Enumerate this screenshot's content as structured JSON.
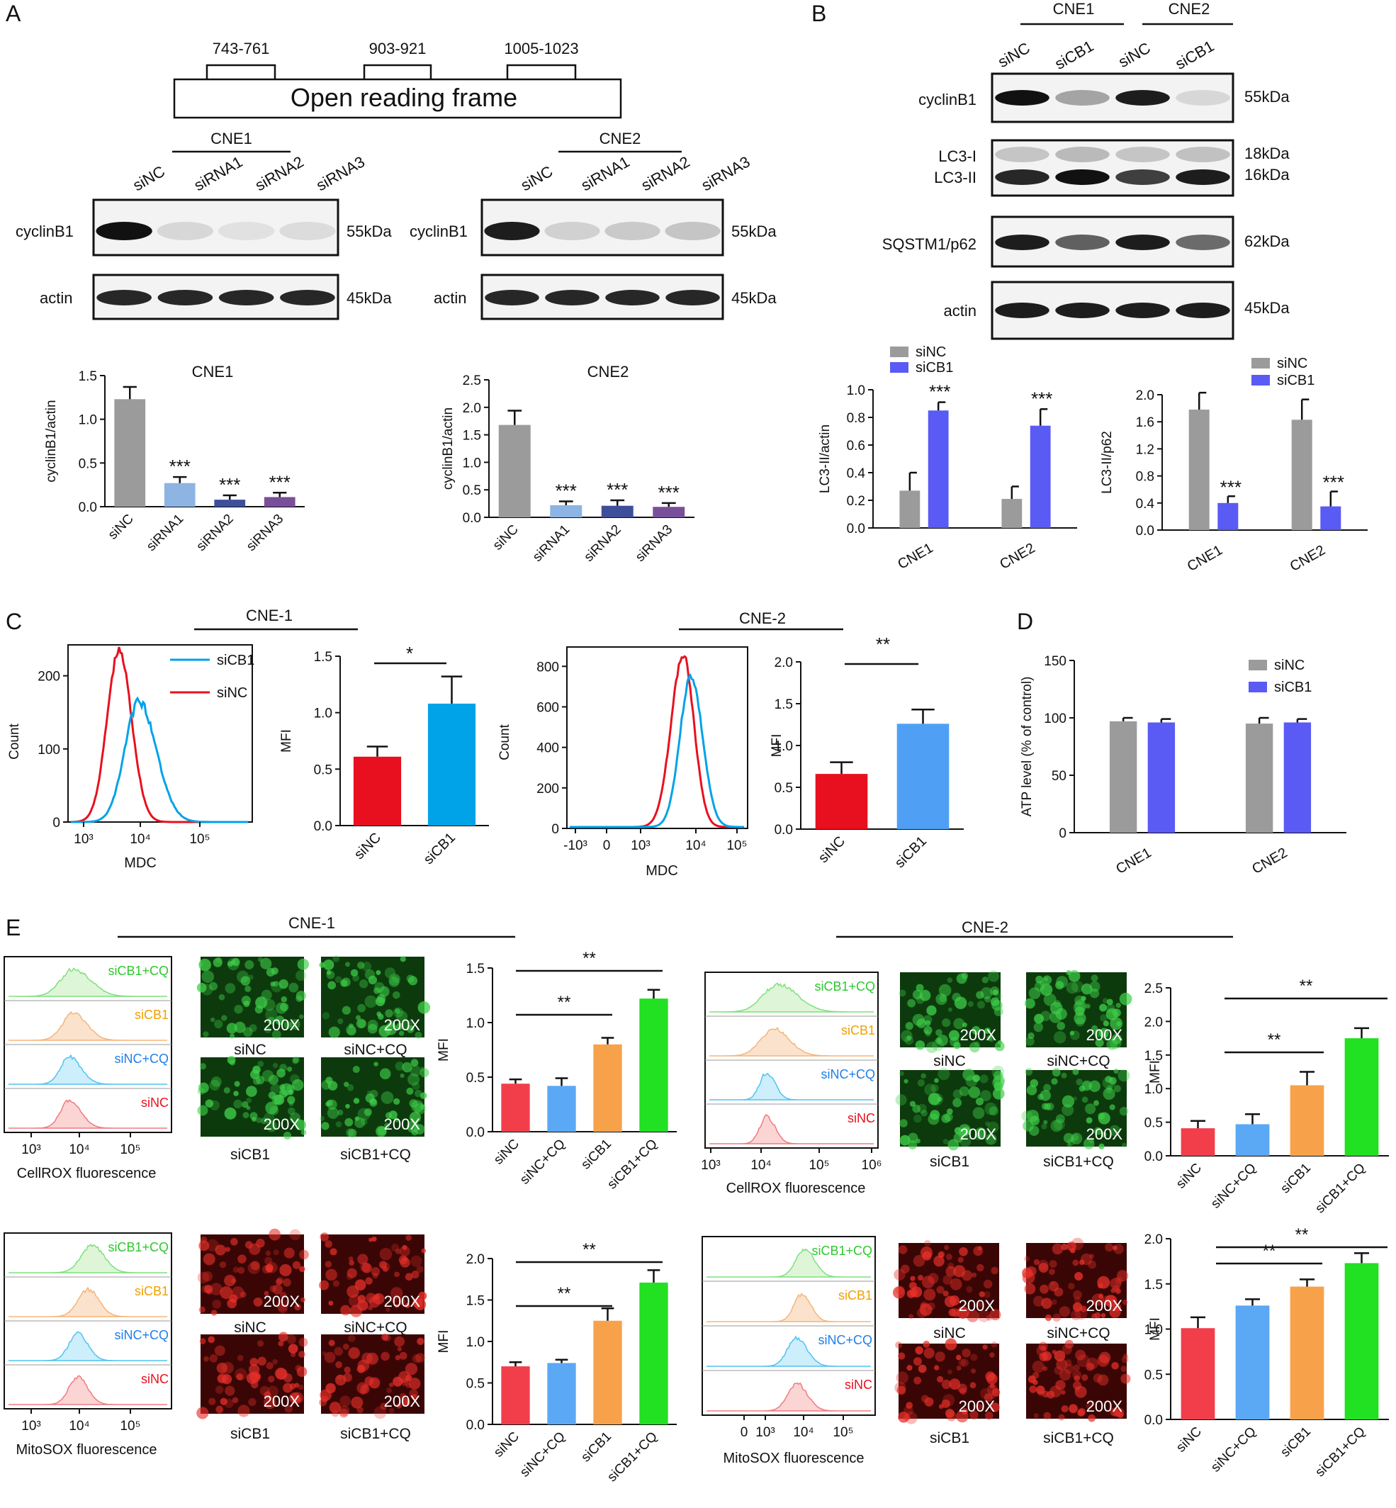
{
  "panels": {
    "A": {
      "letter": "A",
      "orf_label": "Open reading frame",
      "sites": [
        "743-761",
        "903-921",
        "1005-1023"
      ],
      "blots": [
        {
          "cell": "CNE1",
          "lanes": [
            "siNC",
            "siRNA1",
            "siRNA2",
            "siRNA3"
          ],
          "rows": [
            {
              "label": "cyclinB1",
              "kda": "55kDa"
            },
            {
              "label": "actin",
              "kda": "45kDa"
            }
          ]
        },
        {
          "cell": "CNE2",
          "lanes": [
            "siNC",
            "siRNA1",
            "siRNA2",
            "siRNA3"
          ],
          "rows": [
            {
              "label": "cyclinB1",
              "kda": "55kDa"
            },
            {
              "label": "actin",
              "kda": "45kDa"
            }
          ]
        }
      ]
    },
    "B": {
      "letter": "B",
      "cells": [
        "CNE1",
        "CNE2"
      ],
      "lanes": [
        "siNC",
        "siCB1",
        "siNC",
        "siCB1"
      ],
      "rows": [
        {
          "label": "cyclinB1",
          "kda": "55kDa"
        },
        {
          "label": "LC3-I",
          "kda": "18kDa"
        },
        {
          "label": "LC3-II",
          "kda": "16kDa"
        },
        {
          "label": "SQSTM1/p62",
          "kda": "62kDa"
        },
        {
          "label": "actin",
          "kda": "45kDa"
        }
      ]
    },
    "C": {
      "letter": "C",
      "cne1": "CNE-1",
      "cne2": "CNE-2"
    },
    "D": {
      "letter": "D"
    },
    "E": {
      "letter": "E",
      "cne1": "CNE-1",
      "cne2": "CNE-2",
      "histo_order": [
        "siCB1+CQ",
        "siCB1",
        "siNC+CQ",
        "siNC"
      ],
      "magnification": "200X",
      "image_labels": [
        "siNC",
        "siNC+CQ",
        "siCB1",
        "siCB1+CQ"
      ]
    }
  },
  "colors": {
    "gray": "#9b9b9b",
    "blue_sicb1": "#5a5af5",
    "red": "#e8101e",
    "cyan": "#00a2e8",
    "lightblue": "#8db4e2",
    "navy": "#3d4f9a",
    "purple": "#7a4f9a",
    "e_red": "#f23e4b",
    "e_blue": "#5ba8f5",
    "e_orange": "#f7a24a",
    "e_green": "#22e022",
    "hist_green": "#7ee07e",
    "hist_orange": "#f5b57a",
    "hist_cyan": "#4fc3f0",
    "hist_pink": "#f07a80"
  },
  "chart_data": [
    {
      "id": "A-CNE1",
      "type": "bar",
      "title": "CNE1",
      "ylabel": "cyclinB1/actin",
      "ylim": [
        0,
        1.5
      ],
      "yticks": [
        0,
        0.5,
        1.0,
        1.5
      ],
      "categories": [
        "siNC",
        "siRNA1",
        "siRNA2",
        "siRNA3"
      ],
      "values": [
        1.23,
        0.27,
        0.08,
        0.11
      ],
      "errors": [
        0.14,
        0.07,
        0.05,
        0.05
      ],
      "annotations": [
        "",
        "***",
        "***",
        "***"
      ]
    },
    {
      "id": "A-CNE2",
      "type": "bar",
      "title": "CNE2",
      "ylabel": "cyclinB1/actin",
      "ylim": [
        0,
        2.5
      ],
      "yticks": [
        0,
        0.5,
        1.0,
        1.5,
        2.0,
        2.5
      ],
      "categories": [
        "siNC",
        "siRNA1",
        "siRNA2",
        "siRNA3"
      ],
      "values": [
        1.68,
        0.22,
        0.21,
        0.19
      ],
      "errors": [
        0.26,
        0.07,
        0.1,
        0.07
      ],
      "annotations": [
        "",
        "***",
        "***",
        "***"
      ]
    },
    {
      "id": "B-LC3",
      "type": "bar",
      "ylabel": "LC3-II/actin",
      "ylim": [
        0,
        1.0
      ],
      "yticks": [
        0.0,
        0.2,
        0.4,
        0.6,
        0.8,
        1.0
      ],
      "categories": [
        "CNE1",
        "CNE2"
      ],
      "legend": [
        "siNC",
        "siCB1"
      ],
      "series": [
        {
          "name": "siNC",
          "values": [
            0.27,
            0.21
          ],
          "errors": [
            0.13,
            0.09
          ]
        },
        {
          "name": "siCB1",
          "values": [
            0.85,
            0.74
          ],
          "errors": [
            0.06,
            0.12
          ]
        }
      ],
      "annotations": [
        "***",
        "***"
      ]
    },
    {
      "id": "B-p62",
      "type": "bar",
      "ylabel": "LC3-II/p62",
      "ylim": [
        0,
        2.0
      ],
      "yticks": [
        0.0,
        0.4,
        0.8,
        1.2,
        1.6,
        2.0
      ],
      "categories": [
        "CNE1",
        "CNE2"
      ],
      "legend": [
        "siNC",
        "siCB1"
      ],
      "series": [
        {
          "name": "siNC",
          "values": [
            1.78,
            1.63
          ],
          "errors": [
            0.25,
            0.3
          ]
        },
        {
          "name": "siCB1",
          "values": [
            0.4,
            0.35
          ],
          "errors": [
            0.1,
            0.22
          ]
        }
      ],
      "annotations": [
        "***",
        "***"
      ]
    },
    {
      "id": "C-hist1",
      "type": "line",
      "xlabel": "MDC",
      "ylabel": "Count",
      "ylim": [
        0,
        220
      ],
      "yticks": [
        0,
        100,
        200
      ],
      "xticks": [
        "10³",
        "10⁴",
        "10⁵"
      ],
      "legend": [
        "siCB1",
        "siNC"
      ]
    },
    {
      "id": "C-mfi1",
      "type": "bar",
      "ylabel": "MFI",
      "ylim": [
        0,
        1.5
      ],
      "yticks": [
        0.0,
        0.5,
        1.0,
        1.5
      ],
      "categories": [
        "siNC",
        "siCB1"
      ],
      "values": [
        0.61,
        1.08
      ],
      "errors": [
        0.09,
        0.24
      ],
      "annotations": [
        "*"
      ]
    },
    {
      "id": "C-hist2",
      "type": "line",
      "xlabel": "MDC",
      "ylabel": "Count",
      "ylim": [
        0,
        850
      ],
      "yticks": [
        0,
        200,
        400,
        600,
        800
      ],
      "xticks": [
        "-10³",
        "0",
        "10³",
        "10⁴",
        "10⁵"
      ]
    },
    {
      "id": "C-mfi2",
      "type": "bar",
      "ylabel": "MFI",
      "ylim": [
        0,
        2.0
      ],
      "yticks": [
        0.0,
        0.5,
        1.0,
        1.5,
        2.0
      ],
      "categories": [
        "siNC",
        "siCB1"
      ],
      "values": [
        0.66,
        1.26
      ],
      "errors": [
        0.14,
        0.17
      ],
      "annotations": [
        "**"
      ]
    },
    {
      "id": "D-ATP",
      "type": "bar",
      "ylabel": "ATP level (% of control)",
      "ylim": [
        0,
        150
      ],
      "yticks": [
        0,
        50,
        100,
        150
      ],
      "categories": [
        "CNE1",
        "CNE2"
      ],
      "legend": [
        "siNC",
        "siCB1"
      ],
      "series": [
        {
          "name": "siNC",
          "values": [
            97,
            95
          ],
          "errors": [
            3,
            5
          ]
        },
        {
          "name": "siCB1",
          "values": [
            96,
            96
          ],
          "errors": [
            3,
            3
          ]
        }
      ]
    },
    {
      "id": "E-cellrox1-hist",
      "type": "area",
      "xlabel": "CellROX fluorescence",
      "xticks": [
        "10³",
        "10⁴",
        "10⁵"
      ]
    },
    {
      "id": "E-cellrox1-mfi",
      "type": "bar",
      "ylabel": "MFI",
      "ylim": [
        0,
        1.5
      ],
      "yticks": [
        0.0,
        0.5,
        1.0,
        1.5
      ],
      "categories": [
        "siNC",
        "siNC+CQ",
        "siCB1",
        "siCB1+CQ"
      ],
      "values": [
        0.44,
        0.42,
        0.8,
        1.22
      ],
      "errors": [
        0.04,
        0.07,
        0.06,
        0.08
      ],
      "annotations": [
        "**",
        "**"
      ]
    },
    {
      "id": "E-cellrox2-hist",
      "type": "area",
      "xlabel": "CellROX fluorescence",
      "xticks": [
        "10³",
        "10⁴",
        "10⁵",
        "10⁶"
      ]
    },
    {
      "id": "E-cellrox2-mfi",
      "type": "bar",
      "ylabel": "MFI",
      "ylim": [
        0,
        2.5
      ],
      "yticks": [
        0.0,
        0.5,
        1.0,
        1.5,
        2.0,
        2.5
      ],
      "categories": [
        "siNC",
        "siNC+CQ",
        "siCB1",
        "siCB1+CQ"
      ],
      "values": [
        0.41,
        0.47,
        1.05,
        1.75
      ],
      "errors": [
        0.11,
        0.15,
        0.2,
        0.15
      ],
      "annotations": [
        "**",
        "**"
      ]
    },
    {
      "id": "E-mitosox1-hist",
      "type": "area",
      "xlabel": "MitoSOX fluorescence",
      "xticks": [
        "10³",
        "10⁴",
        "10⁵"
      ]
    },
    {
      "id": "E-mitosox1-mfi",
      "type": "bar",
      "ylabel": "MFI",
      "ylim": [
        0,
        2.0
      ],
      "yticks": [
        0.0,
        0.5,
        1.0,
        1.5,
        2.0
      ],
      "categories": [
        "siNC",
        "siNC+CQ",
        "siCB1",
        "siCB1+CQ"
      ],
      "values": [
        0.7,
        0.74,
        1.25,
        1.71
      ],
      "errors": [
        0.05,
        0.04,
        0.15,
        0.15
      ],
      "annotations": [
        "**",
        "**"
      ]
    },
    {
      "id": "E-mitosox2-hist",
      "type": "area",
      "xlabel": "MitoSOX fluorescence",
      "xticks": [
        "0",
        "10³",
        "10⁴",
        "10⁵"
      ]
    },
    {
      "id": "E-mitosox2-mfi",
      "type": "bar",
      "ylabel": "MFI",
      "ylim": [
        0,
        2.0
      ],
      "yticks": [
        0.0,
        0.5,
        1.0,
        1.5,
        2.0
      ],
      "categories": [
        "siNC",
        "siNC+CQ",
        "siCB1",
        "siCB1+CQ"
      ],
      "values": [
        1.01,
        1.26,
        1.47,
        1.73
      ],
      "errors": [
        0.12,
        0.07,
        0.08,
        0.11
      ],
      "annotations": [
        "**",
        "**"
      ]
    }
  ]
}
